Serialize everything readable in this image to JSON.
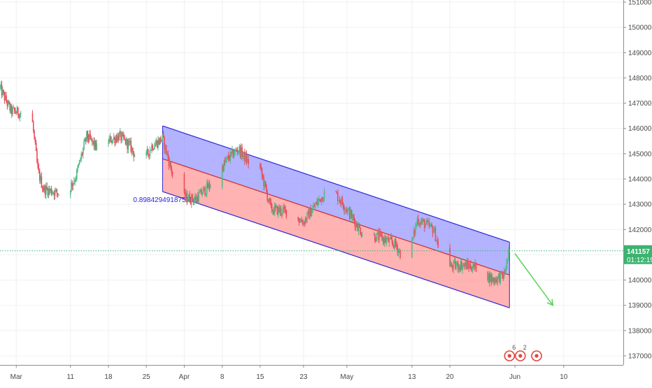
{
  "chart_data": {
    "type": "candlestick",
    "instrument_note": "",
    "y_axis": {
      "position": "right",
      "ticks": [
        137000,
        138000,
        139000,
        140000,
        141000,
        142000,
        143000,
        144000,
        145000,
        146000,
        147000,
        148000,
        149000,
        150000,
        151000
      ],
      "ylim": [
        136600,
        151000
      ]
    },
    "x_axis": {
      "tick_labels": [
        {
          "label": "Mar",
          "date": "2019-03-01"
        },
        {
          "label": "11",
          "date": "2019-03-11"
        },
        {
          "label": "18",
          "date": "2019-03-18"
        },
        {
          "label": "25",
          "date": "2019-03-25"
        },
        {
          "label": "Apr",
          "date": "2019-04-01"
        },
        {
          "label": "8",
          "date": "2019-04-08"
        },
        {
          "label": "15",
          "date": "2019-04-15"
        },
        {
          "label": "23",
          "date": "2019-04-23"
        },
        {
          "label": "May",
          "date": "2019-05-01"
        },
        {
          "label": "13",
          "date": "2019-05-13"
        },
        {
          "label": "20",
          "date": "2019-05-20"
        },
        {
          "label": "Jun",
          "date": "2019-06-01"
        },
        {
          "label": "10",
          "date": "2019-06-10"
        }
      ],
      "xlim": [
        "2019-02-26",
        "2019-06-21"
      ]
    },
    "grid": true,
    "current_price": {
      "label": "141157",
      "value": 141157
    },
    "countdown": {
      "label": "01:12:19"
    },
    "regression_channel": {
      "start": "2019-03-28",
      "end": "2019-05-31",
      "upper": [
        146100,
        141500
      ],
      "middle": [
        144800,
        140200
      ],
      "lower": [
        143500,
        138900
      ],
      "upper_fill": "#9999ff",
      "lower_fill": "#ff9999",
      "coefficient_label": "0.898429491875955"
    },
    "projection_arrow": {
      "from": {
        "date": "2019-06-01",
        "price": 141050
      },
      "to": {
        "date": "2019-06-08",
        "price": 139000
      },
      "color": "#5fd35f"
    },
    "event_markers": [
      {
        "date": "2019-05-31",
        "label": "6"
      },
      {
        "date": "2019-06-02",
        "label": "2"
      },
      {
        "date": "2019-06-05",
        "label": ""
      }
    ],
    "candle_anchors": [
      [
        "2019-02-26",
        147600
      ],
      [
        "2019-02-28",
        146700
      ],
      [
        "2019-03-02",
        146600
      ],
      [
        "2019-03-04",
        146200
      ],
      [
        "2019-03-05",
        144300
      ],
      [
        "2019-03-06",
        143600
      ],
      [
        "2019-03-08",
        143500
      ],
      [
        "2019-03-10",
        143300
      ],
      [
        "2019-03-12",
        144100
      ],
      [
        "2019-03-14",
        145700
      ],
      [
        "2019-03-16",
        145200
      ],
      [
        "2019-03-18",
        145500
      ],
      [
        "2019-03-20",
        145700
      ],
      [
        "2019-03-22",
        145300
      ],
      [
        "2019-03-24",
        144500
      ],
      [
        "2019-03-26",
        145300
      ],
      [
        "2019-03-28",
        145600
      ],
      [
        "2019-03-31",
        143300
      ],
      [
        "2019-04-03",
        143200
      ],
      [
        "2019-04-06",
        143800
      ],
      [
        "2019-04-09",
        144800
      ],
      [
        "2019-04-11",
        145200
      ],
      [
        "2019-04-13",
        144600
      ],
      [
        "2019-04-15",
        144400
      ],
      [
        "2019-04-17",
        142800
      ],
      [
        "2019-04-20",
        142700
      ],
      [
        "2019-04-23",
        142300
      ],
      [
        "2019-04-26",
        143200
      ],
      [
        "2019-04-28",
        143700
      ],
      [
        "2019-05-01",
        142800
      ],
      [
        "2019-05-04",
        141800
      ],
      [
        "2019-05-07",
        141700
      ],
      [
        "2019-05-10",
        141400
      ],
      [
        "2019-05-12",
        140600
      ],
      [
        "2019-05-14",
        142400
      ],
      [
        "2019-05-17",
        142000
      ],
      [
        "2019-05-19",
        140500
      ],
      [
        "2019-05-22",
        140600
      ],
      [
        "2019-05-25",
        140500
      ],
      [
        "2019-05-28",
        140000
      ],
      [
        "2019-05-30",
        140200
      ],
      [
        "2019-05-31",
        141157
      ]
    ],
    "colors": {
      "up": "#53b987",
      "down": "#eb4d5c",
      "channel_line": "#2b24d8",
      "channel_mid": "#d12a2a",
      "price_line": "#3cb371",
      "grid": "#eef0f3",
      "axis_text": "#4a4a4a",
      "marker": "#e0463e"
    }
  }
}
